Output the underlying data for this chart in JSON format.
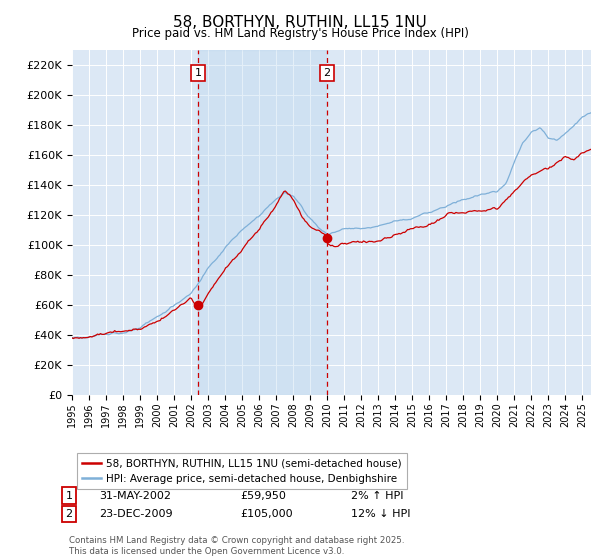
{
  "title": "58, BORTHYN, RUTHIN, LL15 1NU",
  "subtitle": "Price paid vs. HM Land Registry's House Price Index (HPI)",
  "ylim": [
    0,
    230000
  ],
  "yticks": [
    0,
    20000,
    40000,
    60000,
    80000,
    100000,
    120000,
    140000,
    160000,
    180000,
    200000,
    220000
  ],
  "background_color": "#dce8f5",
  "shade_color": "#cce0f0",
  "line1_color": "#cc0000",
  "line2_color": "#7fb0d8",
  "vline_color": "#cc0000",
  "marker1_date_x": 2002.41,
  "marker2_date_x": 2009.97,
  "marker1_price": 59950,
  "marker2_price": 105000,
  "legend_line1": "58, BORTHYN, RUTHIN, LL15 1NU (semi-detached house)",
  "legend_line2": "HPI: Average price, semi-detached house, Denbighshire",
  "annotation1_date": "31-MAY-2002",
  "annotation1_price": "£59,950",
  "annotation1_hpi": "2% ↑ HPI",
  "annotation2_date": "23-DEC-2009",
  "annotation2_price": "£105,000",
  "annotation2_hpi": "12% ↓ HPI",
  "footer": "Contains HM Land Registry data © Crown copyright and database right 2025.\nThis data is licensed under the Open Government Licence v3.0.",
  "xmin": 1995,
  "xmax": 2025.5
}
